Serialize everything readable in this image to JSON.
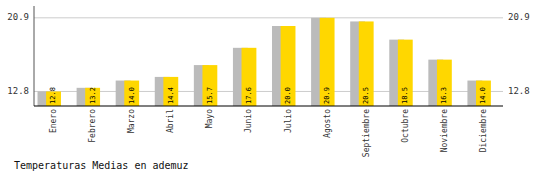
{
  "chart_data": {
    "type": "bar",
    "title": "Temperaturas Medias en ademuz",
    "categories": [
      "Enero",
      "Febrero",
      "Marzo",
      "Abril",
      "Mayo",
      "Junio",
      "Julio",
      "Agosto",
      "Septiembre",
      "Octubre",
      "Noviembre",
      "Diciembre"
    ],
    "series": [
      {
        "color": "#BBBBBB",
        "values": [
          12.8,
          13.2,
          14.0,
          14.4,
          15.7,
          17.6,
          20.0,
          20.9,
          20.5,
          18.5,
          16.3,
          14.0
        ]
      },
      {
        "color": "#FFD700",
        "values": [
          12.8,
          13.2,
          14.0,
          14.4,
          15.7,
          17.6,
          20.0,
          20.9,
          20.5,
          18.5,
          16.3,
          14.0
        ],
        "value_labels": [
          "12.8",
          "13.2",
          "14.0",
          "14.4",
          "15.7",
          "17.6",
          "20.0",
          "20.9",
          "20.5",
          "18.5",
          "16.3",
          "14.0"
        ]
      }
    ],
    "ylim": [
      11.2,
      22.2
    ],
    "yticks": [
      12.8,
      20.9
    ],
    "grid": true,
    "data_labels": true
  }
}
